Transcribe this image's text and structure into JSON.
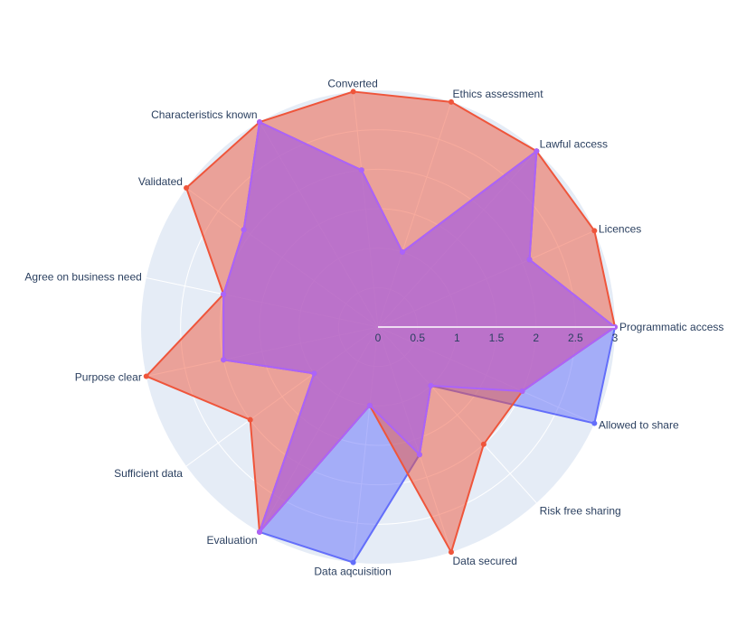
{
  "chart_data": {
    "type": "radar",
    "title": "",
    "categories": [
      "Programmatic access",
      "Licences",
      "Lawful access",
      "Ethics assessment",
      "Converted",
      "Characteristics known",
      "Validated",
      "Agree on business need",
      "Purpose clear",
      "Sufficient data",
      "Evaluation",
      "Data aqcuisition",
      "Data secured",
      "Risk free sharing",
      "Allowed to share"
    ],
    "radial_ticks": [
      "0",
      "0.5",
      "1",
      "1.5",
      "2",
      "2.5",
      "3"
    ],
    "radial_range": [
      0,
      3
    ],
    "series": [
      {
        "name": "",
        "color": "#636efa",
        "values": [
          3,
          2.1,
          3,
          1,
          2,
          3,
          2.1,
          2,
          2,
          1,
          3,
          3,
          1.7,
          1,
          3
        ]
      },
      {
        "name": "",
        "color": "#ef553b",
        "values": [
          3,
          3,
          3,
          3,
          3,
          3,
          3,
          2,
          3,
          2,
          3,
          1,
          3,
          2,
          2
        ]
      },
      {
        "name": "",
        "color": "#ab63fa",
        "values": [
          3,
          2.1,
          3,
          1,
          2,
          3,
          2.1,
          2,
          2,
          1,
          3,
          1,
          1.7,
          1,
          2
        ]
      }
    ],
    "background_color": "#e5ecf6",
    "grid_color": "#ffffff",
    "text_color": "#2a3f5f",
    "legend": "none"
  }
}
